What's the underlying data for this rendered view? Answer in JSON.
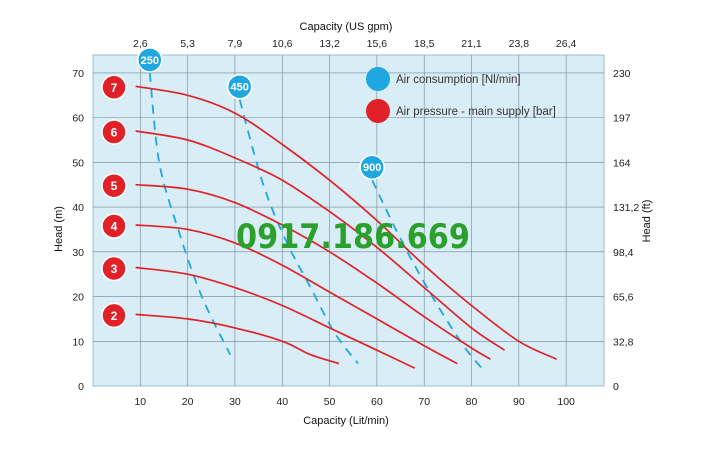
{
  "watermark": "0917.186.669",
  "chart_data": {
    "type": "line",
    "xlabel": "Capacity (Lit/min)",
    "x2label": "Capacity (US gpm)",
    "ylabel": "Head (m)",
    "y2label": "Head (ft)",
    "xlim": [
      0,
      108
    ],
    "ylim": [
      0,
      74
    ],
    "x_ticks": [
      "10",
      "20",
      "30",
      "40",
      "50",
      "60",
      "70",
      "80",
      "90",
      "100"
    ],
    "x2_ticks": [
      "2,6",
      "5,3",
      "7,9",
      "10,6",
      "13,2",
      "15,6",
      "18,5",
      "21,1",
      "23,8",
      "26,4"
    ],
    "y_ticks": [
      "0",
      "10",
      "20",
      "30",
      "40",
      "50",
      "60",
      "70"
    ],
    "y2_ticks": [
      "0",
      "32,8",
      "65,6",
      "98,4",
      "131,2",
      "164",
      "197",
      "230"
    ],
    "grid": true,
    "legend": [
      {
        "label": "Air consumption  [Nl/min]",
        "color": "#1ea7e1"
      },
      {
        "label": "Air pressure  - main supply  [bar]",
        "color": "#e02228"
      }
    ],
    "pressure_series": [
      {
        "name": "2",
        "points": [
          [
            9,
            16
          ],
          [
            20,
            15
          ],
          [
            30,
            13
          ],
          [
            40,
            10
          ],
          [
            46,
            7
          ],
          [
            52,
            5
          ]
        ]
      },
      {
        "name": "3",
        "points": [
          [
            9,
            26.5
          ],
          [
            20,
            25
          ],
          [
            30,
            22
          ],
          [
            40,
            18
          ],
          [
            50,
            13
          ],
          [
            60,
            8
          ],
          [
            68,
            4
          ]
        ]
      },
      {
        "name": "4",
        "points": [
          [
            9,
            36
          ],
          [
            20,
            35
          ],
          [
            30,
            32
          ],
          [
            40,
            27
          ],
          [
            50,
            21
          ],
          [
            60,
            15
          ],
          [
            70,
            9
          ],
          [
            77,
            5
          ]
        ]
      },
      {
        "name": "5",
        "points": [
          [
            9,
            45
          ],
          [
            20,
            44
          ],
          [
            30,
            41
          ],
          [
            40,
            36
          ],
          [
            50,
            30
          ],
          [
            60,
            23
          ],
          [
            70,
            15.5
          ],
          [
            80,
            8.5
          ],
          [
            84,
            6
          ]
        ]
      },
      {
        "name": "6",
        "points": [
          [
            9,
            57
          ],
          [
            20,
            55
          ],
          [
            30,
            51
          ],
          [
            40,
            46
          ],
          [
            50,
            39
          ],
          [
            60,
            31
          ],
          [
            70,
            22
          ],
          [
            80,
            13
          ],
          [
            87,
            8
          ]
        ]
      },
      {
        "name": "7",
        "points": [
          [
            9,
            67
          ],
          [
            20,
            65
          ],
          [
            30,
            61
          ],
          [
            40,
            54
          ],
          [
            50,
            46
          ],
          [
            60,
            37
          ],
          [
            70,
            27
          ],
          [
            80,
            18
          ],
          [
            90,
            10
          ],
          [
            98,
            6
          ]
        ]
      }
    ],
    "air_series": [
      {
        "name": "250",
        "points": [
          [
            12,
            70
          ],
          [
            14,
            50
          ],
          [
            18,
            35
          ],
          [
            23,
            20
          ],
          [
            29,
            7
          ]
        ]
      },
      {
        "name": "450",
        "points": [
          [
            31,
            64
          ],
          [
            36,
            45
          ],
          [
            41,
            32
          ],
          [
            46,
            22
          ],
          [
            51,
            12
          ],
          [
            56,
            5
          ]
        ]
      },
      {
        "name": "900",
        "points": [
          [
            59,
            46
          ],
          [
            64,
            35
          ],
          [
            69,
            25
          ],
          [
            74,
            16
          ],
          [
            79,
            8
          ],
          [
            83,
            3
          ]
        ]
      }
    ]
  }
}
